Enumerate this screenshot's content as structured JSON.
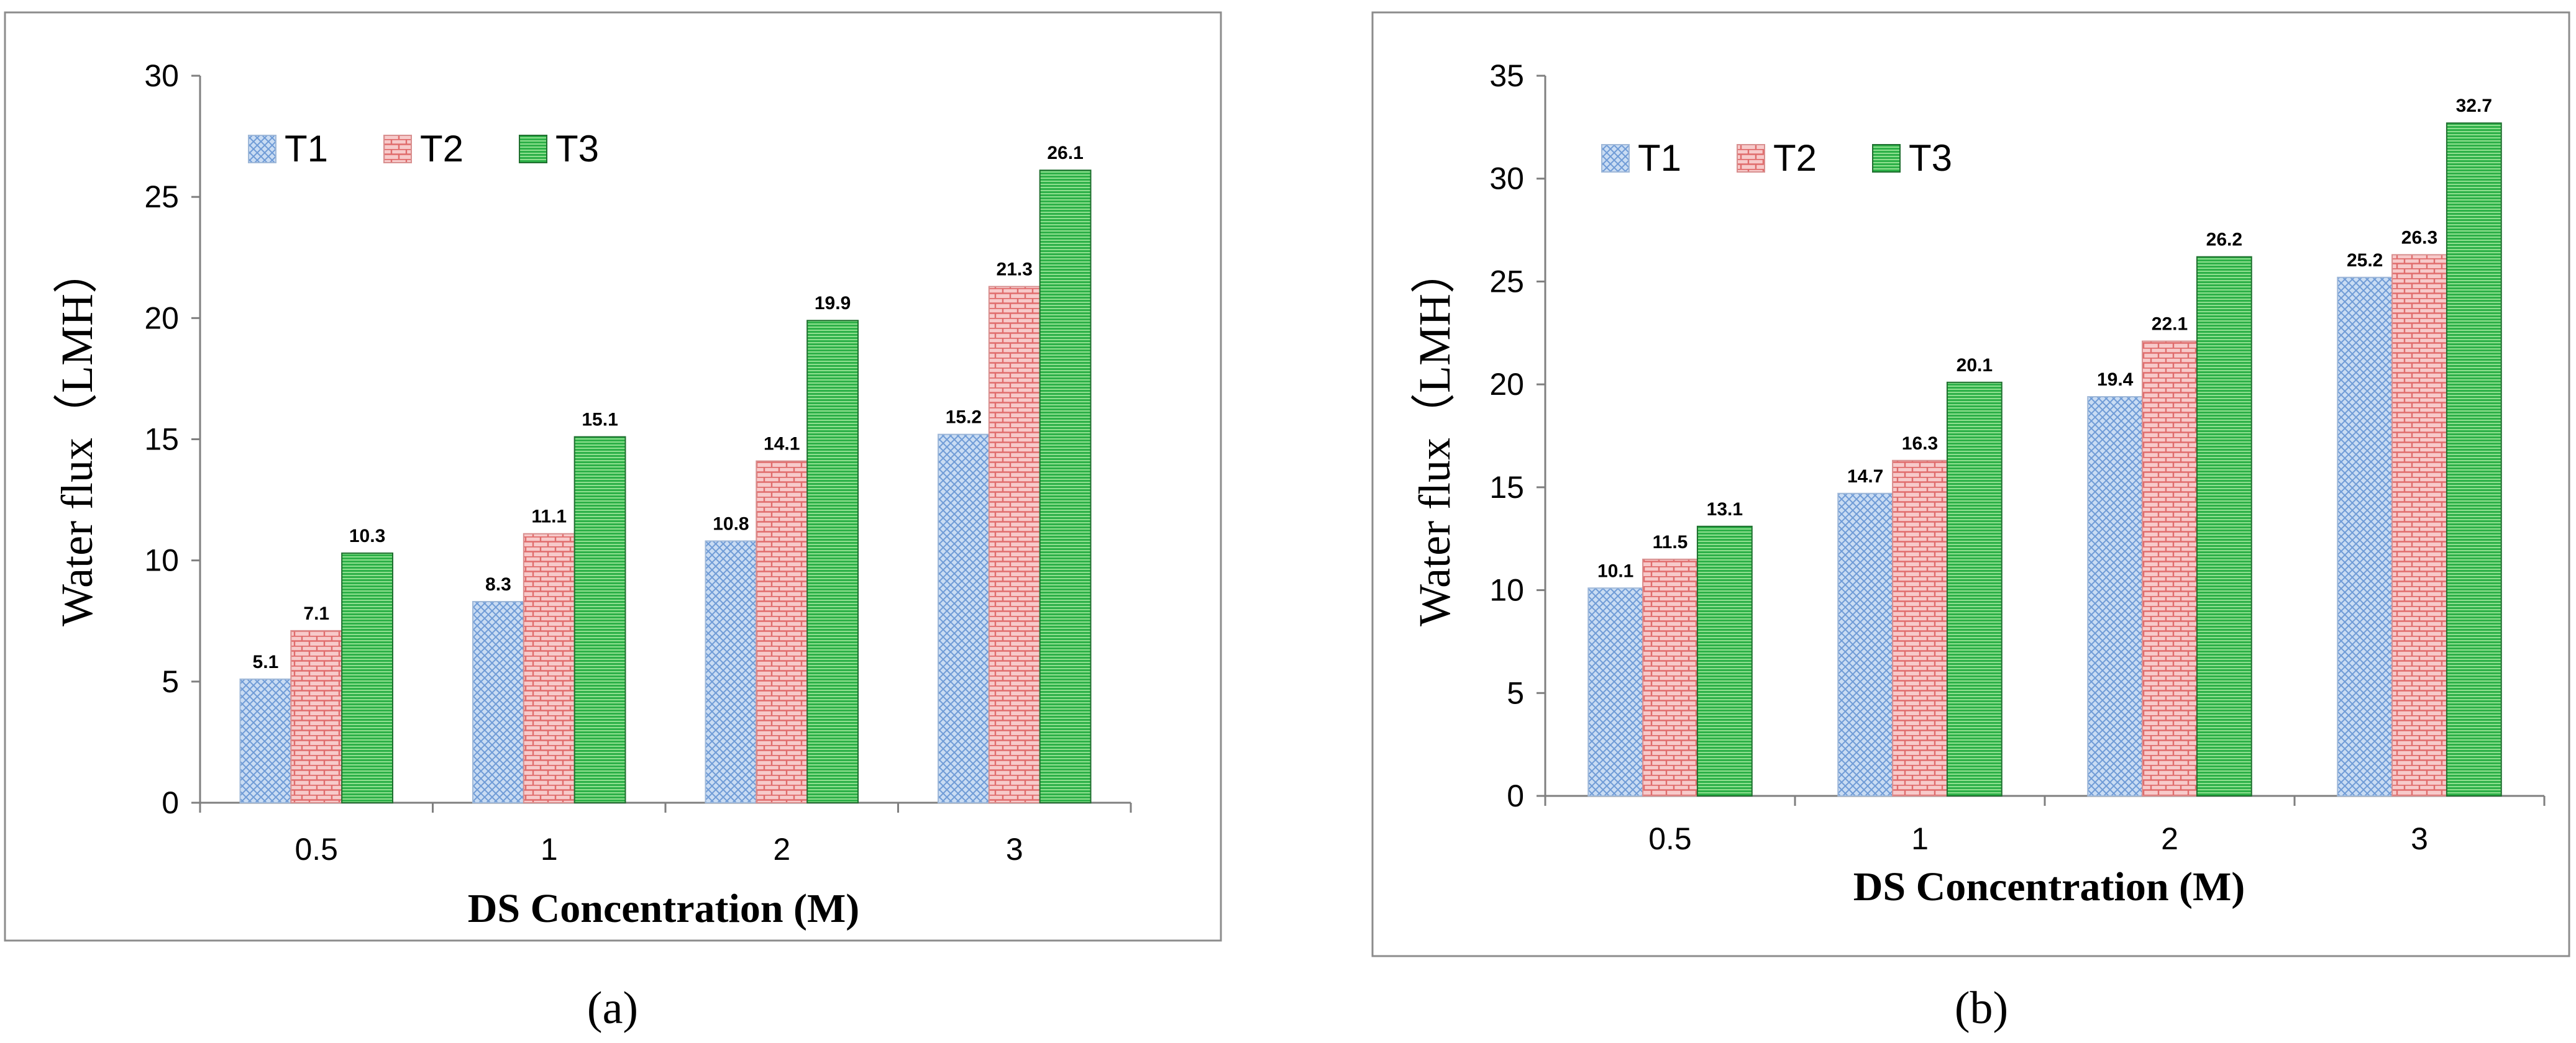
{
  "figure_labels": [
    "(a)",
    "(b)"
  ],
  "colors": {
    "T1": "#aac6ea",
    "T2": "#f1a7a7",
    "T3": "#2db048",
    "T3_stripe": "#8fe08f",
    "frame": "#8c8c8c",
    "axis": "#7f7f7f"
  },
  "chart_data": [
    {
      "type": "bar",
      "panel": "a",
      "xlabel": "DS Concentration (M)",
      "ylabel": "Water flux（LMH）",
      "categories": [
        "0.5",
        "1",
        "2",
        "3"
      ],
      "ylim": [
        0,
        30
      ],
      "yticks": [
        "0",
        "5",
        "10",
        "15",
        "20",
        "25",
        "30"
      ],
      "legend_position": "top-left",
      "series": [
        {
          "name": "T1",
          "values": [
            5.1,
            8.3,
            10.8,
            15.2
          ],
          "labels": [
            "5.1",
            "8.3",
            "10.8",
            "15.2"
          ]
        },
        {
          "name": "T2",
          "values": [
            7.1,
            11.1,
            14.1,
            21.3
          ],
          "labels": [
            "7.1",
            "11.1",
            "14.1",
            "21.3"
          ]
        },
        {
          "name": "T3",
          "values": [
            10.3,
            15.1,
            19.9,
            26.1
          ],
          "labels": [
            "10.3",
            "15.1",
            "19.9",
            "26.1"
          ]
        }
      ]
    },
    {
      "type": "bar",
      "panel": "b",
      "xlabel": "DS Concentration (M)",
      "ylabel": "Water flux（LMH）",
      "categories": [
        "0.5",
        "1",
        "2",
        "3"
      ],
      "ylim": [
        0,
        35
      ],
      "yticks": [
        "0",
        "5",
        "10",
        "15",
        "20",
        "25",
        "30",
        "35"
      ],
      "legend_position": "top-left",
      "series": [
        {
          "name": "T1",
          "values": [
            10.1,
            14.7,
            19.4,
            25.2
          ],
          "labels": [
            "10.1",
            "14.7",
            "19.4",
            "25.2"
          ]
        },
        {
          "name": "T2",
          "values": [
            11.5,
            16.3,
            22.1,
            26.3
          ],
          "labels": [
            "11.5",
            "16.3",
            "22.1",
            "26.3"
          ]
        },
        {
          "name": "T3",
          "values": [
            13.1,
            20.1,
            26.2,
            32.7
          ],
          "labels": [
            "13.1",
            "20.1",
            "26.2",
            "32.7"
          ]
        }
      ]
    }
  ]
}
